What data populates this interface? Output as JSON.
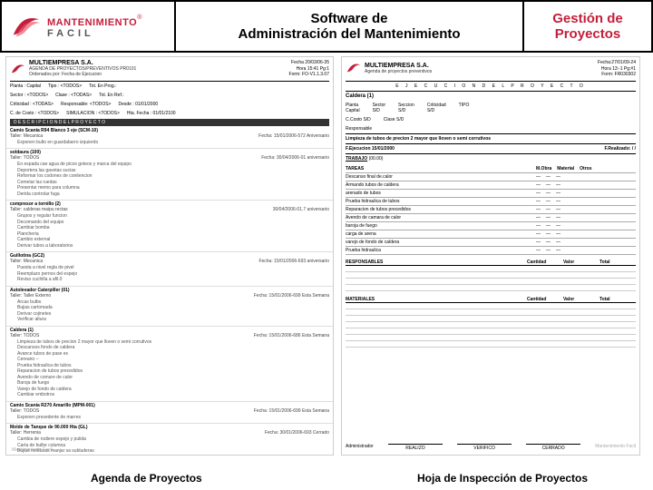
{
  "header": {
    "logo_main": "MANTENIMIENTO",
    "logo_sub": "FACIL",
    "title_line1": "Software de",
    "title_line2": "Administración del Mantenimiento",
    "right_line1": "Gestión de",
    "right_line2": "Proyectos",
    "logo_color": "#c41e3a",
    "logo_sub_color": "#555555"
  },
  "doc_left": {
    "company": "MULTIEMPRESA S.A.",
    "subtitle": "AGENDA DE PROYECTOS/PREVENTIVOS PR0101",
    "subtitle2": "Ordenados por: Fecha de Ejecucion",
    "meta1": "Fecha 20/03/06-35",
    "meta2": "Hora 15:41 Pg:1",
    "meta3": "Form: FO-V1.1.3.07",
    "info": {
      "planta": "Planta : Capital",
      "tipo": "Tipo : <TODOS>",
      "tot_enprog": "Tot. En Prog.:",
      "sector": "Sector : <TODOS>",
      "clase": "Clase : <TODAS>",
      "tot_enref": "Tot. En Ref.:",
      "criticidad": "Criticidad : <TODAS>",
      "respons": "Responsable: <TODOS>",
      "fecha_desde": "Desde : 01/01/2000",
      "c_costo": "C. de Costo : <TODOS>",
      "simulacion": "SIMULACION : <TODOS>",
      "fecha_hasta": "Hta. Fecha : 01/01/2100"
    },
    "section_title": "D E S C R I P C I O N   D E L   P R O Y E C T O",
    "entries": [
      {
        "equip": "Camio Scania R94 Blanco 3 eje (SCM-10)",
        "taller": "Taller: Mecanica",
        "fecha": "Fecha: 15/01/2006-572 Aniversario",
        "desc": [
          "Exponen bulto en guardabarro izquierdo"
        ]
      },
      {
        "equip": "soldaura (100)",
        "taller": "Taller: TODOS",
        "fecha": "Fecha: 30/04/2006-01 aniversario",
        "desc": [
          "En espada cae agua de picos goteos y marca del equipo",
          "Deportera las gavetas sucias",
          "Reformar los codones de conitencion",
          "Cometar las ruedas",
          "Presentar memo para columna",
          "Derida controlar fuga"
        ]
      },
      {
        "equip": "compresor a tornillo (2)",
        "taller": "Taller: calderas maipu rectas",
        "fecha": "30/04/2006-01.7 aniversario",
        "desc": [
          "Grupos y regular funcion",
          "Decomando del equipo",
          "Cambiar bomba",
          "Plancheria",
          "Cambio external",
          "Derivar tubos a laboratorios"
        ]
      },
      {
        "equip": "Guillotina (GC2)",
        "taller": "Taller: Mecanica",
        "fecha": "Fecha: 15/01/2006-693 aniversario",
        "desc": [
          "Puesta a nivel regla de pivel",
          "Reemplazo pernos del espejo",
          "Reviso cuchilla a afil.0"
        ]
      },
      {
        "equip": "Autolevador Caterpiller (01)",
        "taller": "Taller: Taller Externo",
        "fecha": "Fecha: 15/01/2006-699 Esta Semana",
        "desc": [
          "Arcas bulbo",
          "Bujias cartomada",
          "Derivar cojinetes",
          "Verificar altura"
        ]
      },
      {
        "equip": "Caldera (1)",
        "taller": "Taller: TODOS",
        "fecha": "Fecha: 15/01/2006-686 Esta Semana",
        "desc": [
          "Limpieza de tubos de precion 2 mayor que lloven o semi corrutivos",
          "Descansos fondo de caldera",
          "Avance tubos de pase es",
          "Cereano --",
          "Prueba hidraulica de tubos",
          "Reparacion de tubos precedidos",
          "Avendo de comure de calor",
          "Baroja de fuego",
          "Varejo de fondo de caldera",
          "Cambiar embotros"
        ]
      },
      {
        "equip": "Camio Scania R270 Amarillo (MPM-001)",
        "taller": "Taller: TODOS",
        "fecha": "Fecha: 15/01/2006-699 Esta Semana",
        "desc": [
          "Exponen presedente de marres"
        ]
      },
      {
        "equip": "Molde de Tanque de 90.000 Hta (GL)",
        "taller": "Taller: Herrenia",
        "fecha": "Fecha: 30/01/2006-693 Cerrado",
        "desc": [
          "Cambia de rodiere espejo y pulida",
          "Carta de bulbe columna",
          "Bujias molduras manjar sa subluderas",
          "Pila controlar fuga"
        ]
      },
      {
        "equip": "Autolevador Caterpiller (02)",
        "taller": "Taller: Mecanica",
        "fecha": "Fecha: 15/01/2006-01.2 Proximos",
        "desc": [
          "Mevisan cartos de marches de variedad",
          "Cambiar aceite de velocidad",
          "Ventilar torre",
          "Verificar fugas de aceite de marche y similar hacer vepande a afil."
        ]
      }
    ],
    "footer_brand": "Mantenimiento Facil"
  },
  "doc_right": {
    "company": "MULTIEMPRESA S.A.",
    "subtitle": "Agenda de proyectos preventivos",
    "meta1": "Fecha:27/01/09-24",
    "meta2": "Hora 13:-1 Pg:#1",
    "meta3": "Form: FR030302",
    "exec_title": "E J E C U C I O N   D E L   P R O Y E C T O",
    "caldera": "Caldera (1)",
    "info": {
      "planta": "Planta",
      "planta_v": "Capital",
      "sector": "Sector",
      "sector_v": "S/D",
      "seccion": "Seccion",
      "seccion_v": "S/D",
      "criticidad": "Criticidad",
      "criticidad_v": "S/D",
      "tipo": "TIPO",
      "ccosto": "C.Costo",
      "ccosto_v": "S/D",
      "clase": "Clase",
      "clase_v": "S/D",
      "responsable": "Responsable"
    },
    "instruccion": "Limpieza de tubos de precion 2 mayor que lloven o semi corrutivos",
    "fecha_ejec": "F.Ejecucion 15/01/2000",
    "fecha_real": "F.Realizado:    /    /",
    "trabajo": "TRABAJO",
    "trabajo_code": "(00.00)",
    "tareas_label": "TAREAS",
    "col_headers": [
      "M.Obra",
      "Material",
      "Otros"
    ],
    "tareas": [
      "Descanso final de.calor",
      "Armando tubos de caldera",
      "arenado de tubos",
      "Prueba hidraulica de tubos",
      "Reparacion de tubos precedidos",
      "Avendo de camara de calor",
      "baroja de fuego",
      "carga de arena",
      "varejo de fondo de caldera",
      "Prueba hidraulica"
    ],
    "responsables_label": "RESPONSABLES",
    "resp_cols": [
      "Cantidad",
      "Valor",
      "Total"
    ],
    "materiales_label": "MATERIALES",
    "mat_cols": [
      "Cantidad",
      "Valor",
      "Total"
    ],
    "sig1_label": "REALIZO",
    "sig2_label": "VERIFICO",
    "sig3_label": "CERRADO",
    "admin_label": "Administrador",
    "footer_brand": "Mantenimiento Facil"
  },
  "captions": {
    "left": "Agenda de Proyectos",
    "right": "Hoja de Inspección de Proyectos"
  },
  "colors": {
    "brand_red": "#c41e3a",
    "border": "#000000",
    "bg": "#ffffff"
  }
}
